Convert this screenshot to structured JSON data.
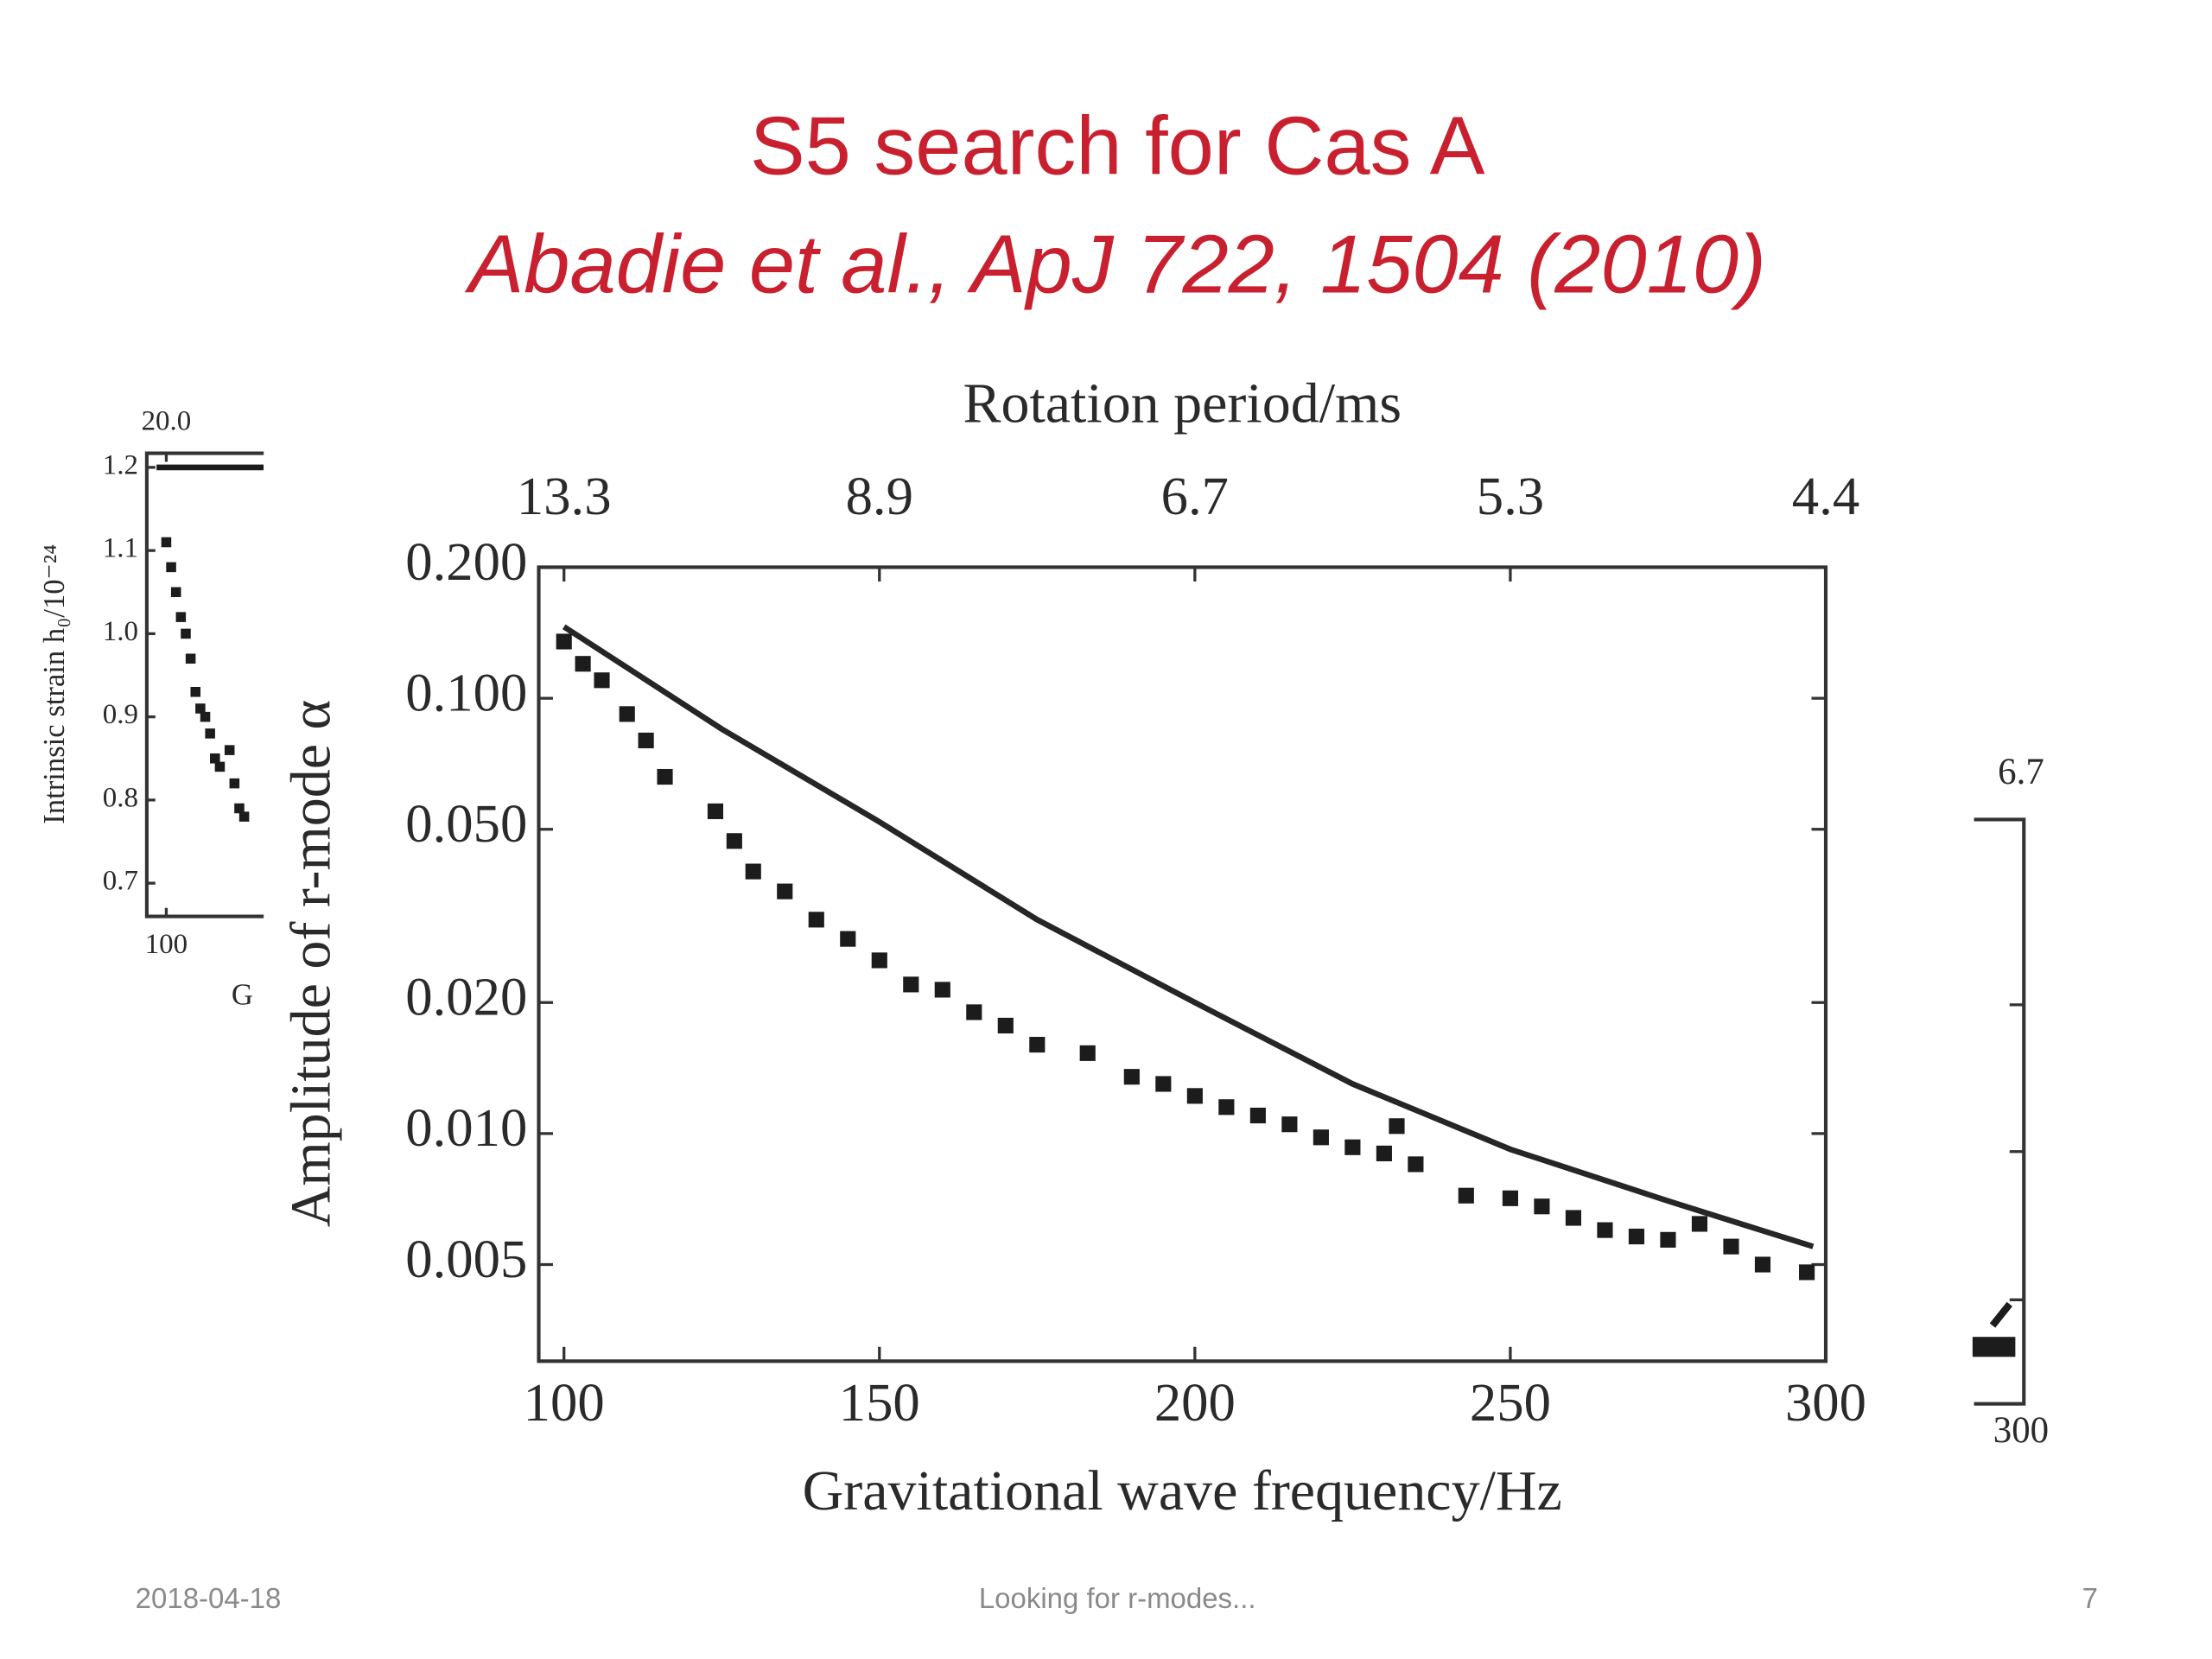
{
  "slide": {
    "title": "S5 search for Cas A",
    "subtitle": "Abadie et al., ApJ 722, 1504 (2010)",
    "date": "2018-04-18",
    "footer": "Looking for r-modes...",
    "page": "7"
  },
  "chart_data": [
    {
      "type": "scatter",
      "x2label": "Rotation period/ms",
      "ylabel": "Amplitude of r-mode α",
      "xlabel": "Gravitational wave frequency/Hz",
      "xlim": [
        96,
        300
      ],
      "ylim": [
        0.003,
        0.2
      ],
      "log_y": true,
      "xticks": [
        100,
        150,
        200,
        250,
        300
      ],
      "x2ticks": [
        13.3,
        8.9,
        6.7,
        5.3,
        4.4
      ],
      "yticks": [
        {
          "value": 0.2,
          "label": "0.200"
        },
        {
          "value": 0.1,
          "label": "0.100"
        },
        {
          "value": 0.05,
          "label": "0.050"
        },
        {
          "value": 0.02,
          "label": "0.020"
        },
        {
          "value": 0.01,
          "label": "0.010"
        },
        {
          "value": 0.005,
          "label": "0.005"
        }
      ],
      "series": [
        {
          "kind": "line",
          "color": "#262626",
          "x": [
            100,
            125,
            150,
            175,
            200,
            225,
            250,
            275,
            298
          ],
          "values": [
            0.146,
            0.085,
            0.052,
            0.031,
            0.02,
            0.013,
            0.0092,
            0.007,
            0.0055
          ]
        },
        {
          "kind": "points",
          "color": "#1c1c1c",
          "x": [
            100,
            103,
            106,
            110,
            113,
            116,
            124,
            127,
            130,
            135,
            140,
            145,
            150,
            155,
            160,
            165,
            170,
            175,
            183,
            190,
            195,
            200,
            205,
            210,
            215,
            220,
            225,
            230,
            232,
            235,
            243,
            250,
            255,
            260,
            265,
            270,
            275,
            280,
            285,
            290,
            297
          ],
          "values": [
            0.135,
            0.12,
            0.11,
            0.092,
            0.08,
            0.066,
            0.055,
            0.047,
            0.04,
            0.036,
            0.031,
            0.028,
            0.025,
            0.022,
            0.0214,
            0.019,
            0.0177,
            0.016,
            0.0153,
            0.0135,
            0.013,
            0.0122,
            0.0115,
            0.011,
            0.0105,
            0.0098,
            0.0093,
            0.009,
            0.0104,
            0.0085,
            0.0072,
            0.0071,
            0.0068,
            0.0064,
            0.006,
            0.0058,
            0.0057,
            0.0062,
            0.0055,
            0.005,
            0.0048
          ]
        }
      ]
    },
    {
      "type": "scatter",
      "ylabel": "Intrinsic strain h₀/10⁻²⁴",
      "xlabel": "G",
      "xlim": [
        96,
        120
      ],
      "ylim": [
        0.66,
        1.217
      ],
      "xticks": [
        100
      ],
      "x2ticks": [
        {
          "value": 20,
          "label": "20.0"
        }
      ],
      "yticks": [
        1.2,
        1.1,
        {
          "value": 1,
          "label": "1.0"
        },
        0.9,
        0.8,
        0.7
      ],
      "series": [
        {
          "kind": "line",
          "color": "#1c1c1c",
          "x": [
            98,
            120
          ],
          "values": [
            1.2,
            1.2
          ]
        },
        {
          "kind": "points",
          "color": "#1c1c1c",
          "x": [
            100,
            101,
            102,
            103,
            104,
            105,
            106,
            107,
            108,
            109,
            110,
            111,
            113,
            114,
            115,
            116
          ],
          "values": [
            1.11,
            1.08,
            1.05,
            1.02,
            1.0,
            0.97,
            0.93,
            0.91,
            0.9,
            0.88,
            0.85,
            0.84,
            0.86,
            0.82,
            0.79,
            0.78
          ]
        }
      ]
    }
  ],
  "right_fragment": {
    "top_label": "6.7",
    "bottom_label": "300"
  }
}
